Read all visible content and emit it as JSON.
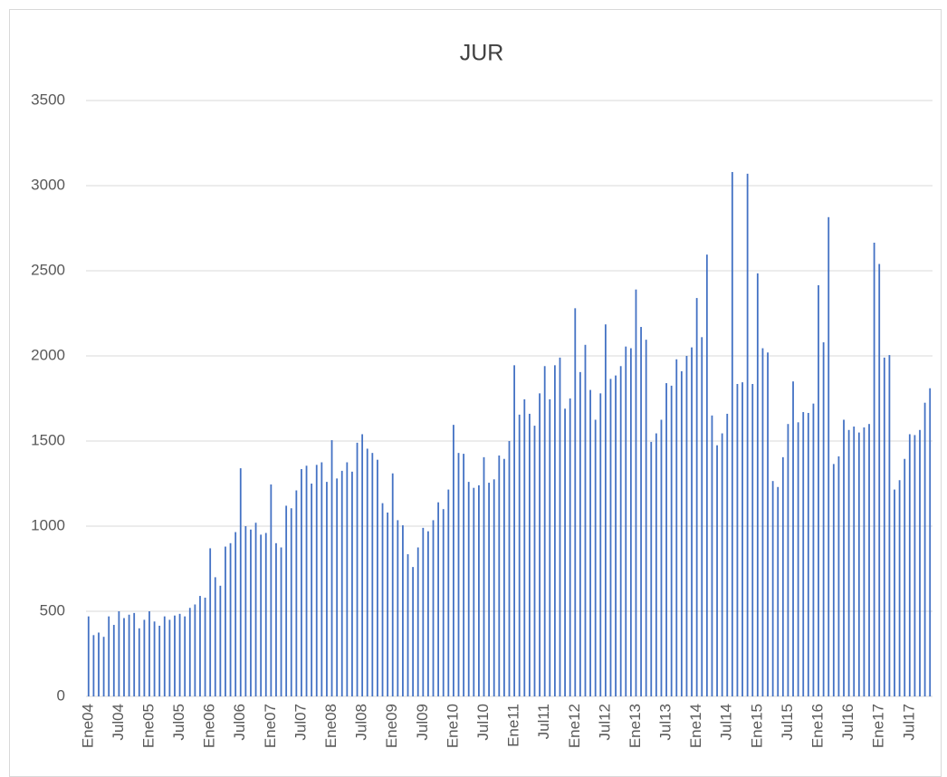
{
  "chart_data": {
    "type": "bar",
    "title": "JUR",
    "categories": [
      "Ene04",
      null,
      null,
      null,
      null,
      null,
      "Jul04",
      null,
      null,
      null,
      null,
      null,
      "Ene05",
      null,
      null,
      null,
      null,
      null,
      "Jul05",
      null,
      null,
      null,
      null,
      null,
      "Ene06",
      null,
      null,
      null,
      null,
      null,
      "Jul06",
      null,
      null,
      null,
      null,
      null,
      "Ene07",
      null,
      null,
      null,
      null,
      null,
      "Jul07",
      null,
      null,
      null,
      null,
      null,
      "Ene08",
      null,
      null,
      null,
      null,
      null,
      "Jul08",
      null,
      null,
      null,
      null,
      null,
      "Ene09",
      null,
      null,
      null,
      null,
      null,
      "Jul09",
      null,
      null,
      null,
      null,
      null,
      "Ene10",
      null,
      null,
      null,
      null,
      null,
      "Jul10",
      null,
      null,
      null,
      null,
      null,
      "Ene11",
      null,
      null,
      null,
      null,
      null,
      "Jul11",
      null,
      null,
      null,
      null,
      null,
      "Ene12",
      null,
      null,
      null,
      null,
      null,
      "Jul12",
      null,
      null,
      null,
      null,
      null,
      "Ene13",
      null,
      null,
      null,
      null,
      null,
      "Jul13",
      null,
      null,
      null,
      null,
      null,
      "Ene14",
      null,
      null,
      null,
      null,
      null,
      "Jul14",
      null,
      null,
      null,
      null,
      null,
      "Ene15",
      null,
      null,
      null,
      null,
      null,
      "Jul15",
      null,
      null,
      null,
      null,
      null,
      "Ene16",
      null,
      null,
      null,
      null,
      null,
      "Jul16",
      null,
      null,
      null,
      null,
      null,
      "Ene17",
      null,
      null,
      null,
      null,
      null,
      "Jul17",
      null,
      null,
      null,
      null
    ],
    "values": [
      470,
      360,
      375,
      350,
      470,
      420,
      500,
      460,
      480,
      490,
      400,
      450,
      500,
      440,
      415,
      470,
      450,
      475,
      485,
      470,
      520,
      540,
      590,
      580,
      870,
      700,
      650,
      880,
      900,
      965,
      1340,
      1000,
      980,
      1020,
      950,
      960,
      1245,
      900,
      875,
      1120,
      1105,
      1210,
      1335,
      1355,
      1250,
      1360,
      1375,
      1260,
      1505,
      1280,
      1325,
      1375,
      1320,
      1490,
      1540,
      1455,
      1430,
      1390,
      1135,
      1080,
      1310,
      1035,
      1005,
      835,
      760,
      875,
      990,
      970,
      1035,
      1140,
      1100,
      1215,
      1595,
      1430,
      1425,
      1260,
      1225,
      1240,
      1405,
      1255,
      1275,
      1415,
      1395,
      1500,
      1945,
      1655,
      1745,
      1660,
      1590,
      1780,
      1940,
      1745,
      1945,
      1990,
      1690,
      1750,
      2280,
      1905,
      2065,
      1800,
      1625,
      1780,
      2185,
      1865,
      1885,
      1940,
      2055,
      2045,
      2390,
      2170,
      2095,
      1495,
      1545,
      1625,
      1840,
      1825,
      1980,
      1910,
      2000,
      2050,
      2340,
      2110,
      2595,
      1650,
      1475,
      1545,
      1660,
      3080,
      1835,
      1845,
      3070,
      1835,
      2485,
      2045,
      2020,
      1265,
      1230,
      1405,
      1600,
      1850,
      1610,
      1670,
      1665,
      1720,
      2415,
      2080,
      2815,
      1365,
      1410,
      1625,
      1565,
      1585,
      1550,
      1580,
      1600,
      2665,
      2540,
      1990,
      2005,
      1215,
      1270,
      1395,
      1540,
      1535,
      1565,
      1725,
      1810
    ],
    "color": "#4472c4",
    "ylim": [
      0,
      3500
    ],
    "yticks": [
      0,
      500,
      1000,
      1500,
      2000,
      2500,
      3000,
      3500
    ],
    "grid": true
  }
}
